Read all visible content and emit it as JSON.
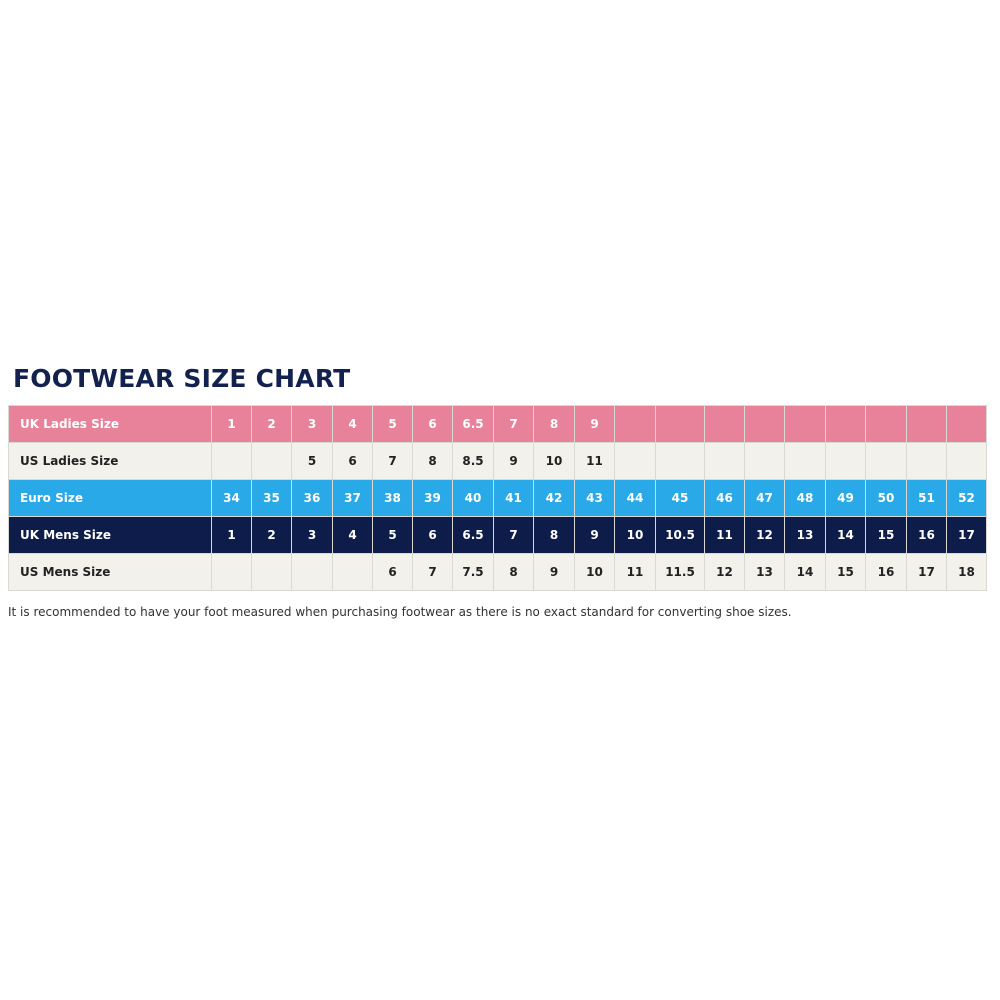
{
  "title": "FOOTWEAR SIZE CHART",
  "colors": {
    "uk_ladies": "#e8829a",
    "us_rows": "#f2f1ec",
    "euro": "#2aa9e8",
    "uk_mens": "#0e1c4a",
    "title": "#13214f"
  },
  "rows": [
    {
      "label": "UK Ladies Size",
      "style": "pink",
      "values": [
        "1",
        "2",
        "3",
        "4",
        "5",
        "6",
        "6.5",
        "7",
        "8",
        "9",
        "",
        "",
        "",
        "",
        "",
        "",
        "",
        "",
        ""
      ]
    },
    {
      "label": "US Ladies Size",
      "style": "light",
      "values": [
        "",
        "",
        "5",
        "6",
        "7",
        "8",
        "8.5",
        "9",
        "10",
        "11",
        "",
        "",
        "",
        "",
        "",
        "",
        "",
        "",
        ""
      ]
    },
    {
      "label": "Euro Size",
      "style": "blue",
      "values": [
        "34",
        "35",
        "36",
        "37",
        "38",
        "39",
        "40",
        "41",
        "42",
        "43",
        "44",
        "45",
        "46",
        "47",
        "48",
        "49",
        "50",
        "51",
        "52"
      ]
    },
    {
      "label": "UK Mens Size",
      "style": "navy",
      "values": [
        "1",
        "2",
        "3",
        "4",
        "5",
        "6",
        "6.5",
        "7",
        "8",
        "9",
        "10",
        "10.5",
        "11",
        "12",
        "13",
        "14",
        "15",
        "16",
        "17"
      ]
    },
    {
      "label": "US Mens Size",
      "style": "light",
      "values": [
        "",
        "",
        "",
        "",
        "6",
        "7",
        "7.5",
        "8",
        "9",
        "10",
        "11",
        "11.5",
        "12",
        "13",
        "14",
        "15",
        "16",
        "17",
        "18"
      ]
    }
  ],
  "note": "It is recommended to have your foot measured when purchasing footwear as there is no exact standard for converting shoe sizes."
}
